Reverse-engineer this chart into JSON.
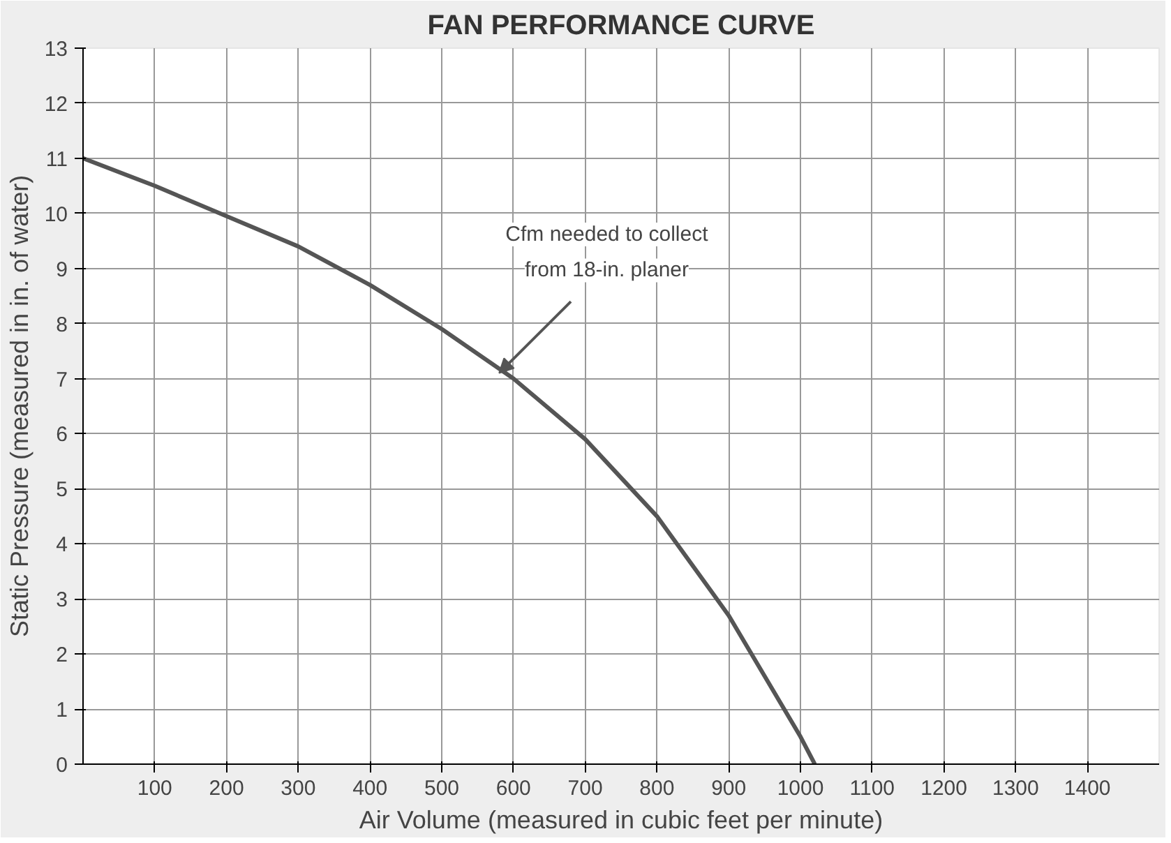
{
  "chart_data": {
    "type": "line",
    "title": "FAN PERFORMANCE CURVE",
    "xlabel": "Air Volume (measured in cubic feet per minute)",
    "ylabel": "Static Pressure (measured in in. of water)",
    "x": [
      0,
      100,
      200,
      300,
      400,
      500,
      600,
      700,
      800,
      900,
      950,
      1000,
      1020
    ],
    "series": [
      {
        "color": "#555555",
        "values": [
          11,
          10.5,
          9.95,
          9.4,
          8.7,
          7.9,
          7.0,
          5.9,
          4.5,
          2.7,
          1.6,
          0.5,
          0
        ]
      }
    ],
    "xlim": [
      0,
      1500
    ],
    "ylim": [
      0,
      13
    ],
    "xticks": [
      100,
      200,
      300,
      400,
      500,
      600,
      700,
      800,
      900,
      1000,
      1100,
      1200,
      1300,
      1400
    ],
    "yticks": [
      0,
      1,
      2,
      3,
      4,
      5,
      6,
      7,
      8,
      9,
      10,
      11,
      12,
      13
    ],
    "grid": true,
    "marker": "none",
    "line_style": "solid",
    "annotations": [
      {
        "text": "Cfm needed to collect\nfrom 18-in. planer",
        "x": 580,
        "y": 7.1
      }
    ]
  }
}
